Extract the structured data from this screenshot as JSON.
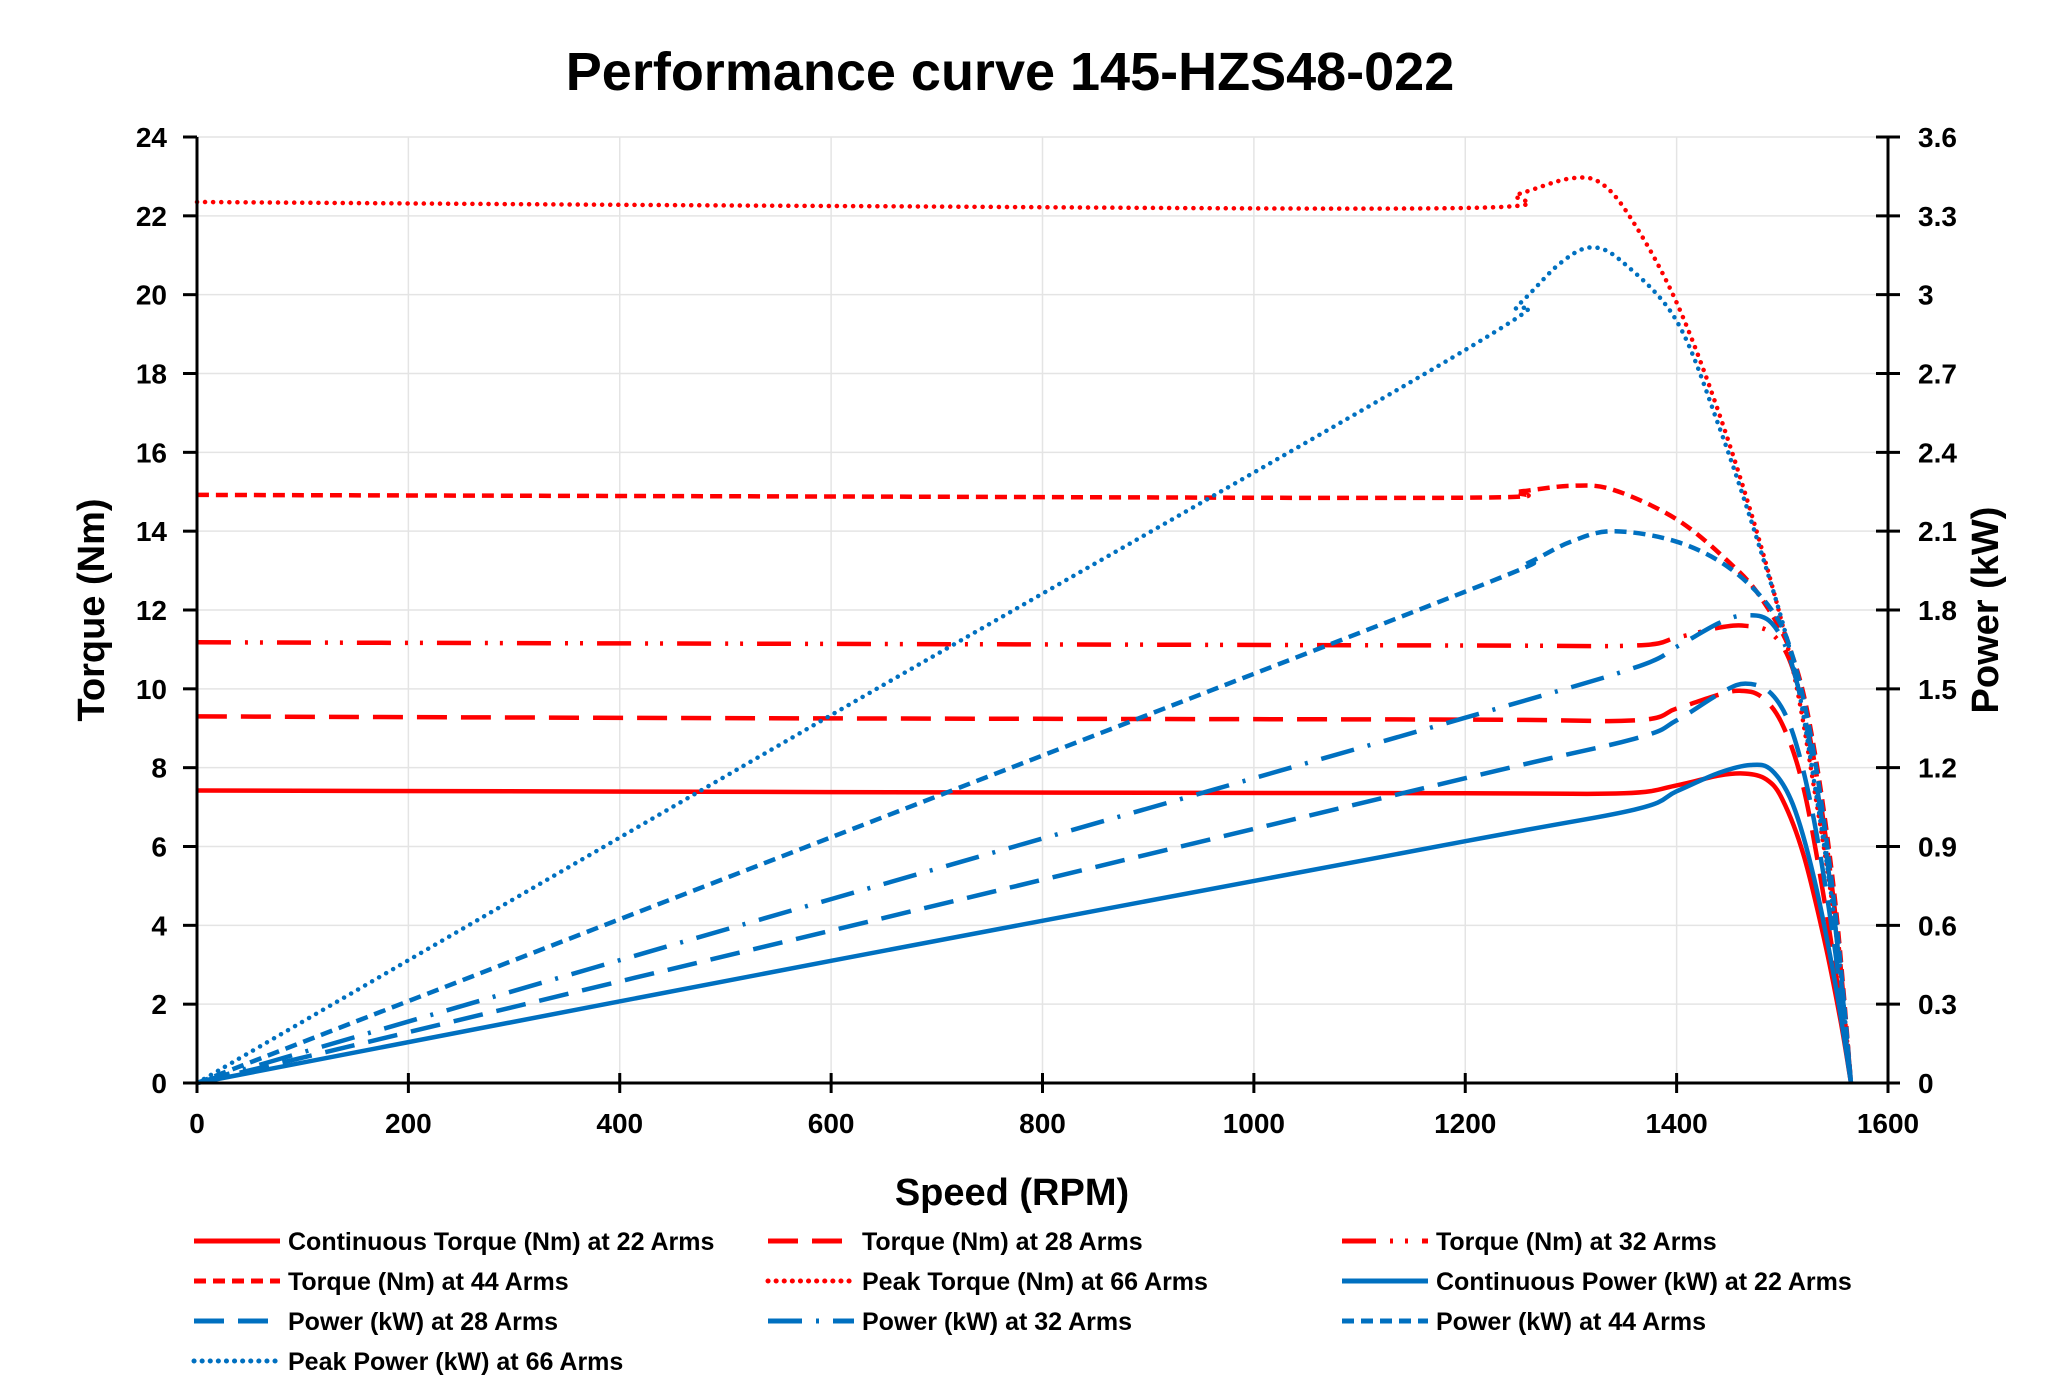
{
  "chart_data": {
    "type": "line",
    "title": "Performance curve 145-HZS48-022",
    "xlabel": "Speed (RPM)",
    "ylabel": "Torque (Nm)",
    "y2label": "Power (kW)",
    "xlim": [
      0,
      1600
    ],
    "ylim": [
      0,
      24
    ],
    "y2lim": [
      0,
      3.6
    ],
    "xticks": [
      "0",
      "200",
      "400",
      "600",
      "800",
      "1000",
      "1200",
      "1400",
      "1600"
    ],
    "yticks": [
      "0",
      "2",
      "4",
      "6",
      "8",
      "10",
      "12",
      "14",
      "16",
      "18",
      "20",
      "22",
      "24"
    ],
    "y2ticks": [
      "0",
      "0.3",
      "0.6",
      "0.9",
      "1.2",
      "1.5",
      "1.8",
      "2.1",
      "2.4",
      "2.7",
      "3",
      "3.3",
      "3.6"
    ],
    "grid": true,
    "legend_position": "bottom",
    "colors": {
      "torque": "#ff0000",
      "power": "#0070c0"
    },
    "series": [
      {
        "name": "Continuous Torque (Nm) at 22 Arms",
        "axis": "left",
        "color": "#ff0000",
        "dash": "solid",
        "points": [
          [
            0,
            7.42
          ],
          [
            600,
            7.38
          ],
          [
            1200,
            7.35
          ],
          [
            1350,
            7.35
          ],
          [
            1400,
            7.55
          ],
          [
            1440,
            7.8
          ],
          [
            1465,
            7.85
          ],
          [
            1485,
            7.7
          ],
          [
            1500,
            7.2
          ],
          [
            1520,
            5.8
          ],
          [
            1540,
            3.6
          ],
          [
            1555,
            1.6
          ],
          [
            1565,
            0
          ]
        ]
      },
      {
        "name": "Torque (Nm) at 28 Arms",
        "axis": "left",
        "color": "#ff0000",
        "dash": "long-dash",
        "points": [
          [
            0,
            9.3
          ],
          [
            600,
            9.25
          ],
          [
            1200,
            9.22
          ],
          [
            1360,
            9.2
          ],
          [
            1400,
            9.5
          ],
          [
            1440,
            9.85
          ],
          [
            1460,
            9.95
          ],
          [
            1480,
            9.8
          ],
          [
            1500,
            9.1
          ],
          [
            1520,
            7.5
          ],
          [
            1540,
            4.6
          ],
          [
            1555,
            2
          ],
          [
            1565,
            0
          ]
        ]
      },
      {
        "name": "Torque (Nm) at 32 Arms",
        "axis": "left",
        "color": "#ff0000",
        "dash": "dash-dot-dot",
        "points": [
          [
            0,
            11.18
          ],
          [
            600,
            11.14
          ],
          [
            1200,
            11.1
          ],
          [
            1360,
            11.1
          ],
          [
            1400,
            11.3
          ],
          [
            1440,
            11.55
          ],
          [
            1465,
            11.6
          ],
          [
            1490,
            11.4
          ],
          [
            1510,
            10.5
          ],
          [
            1530,
            8.2
          ],
          [
            1550,
            4.3
          ],
          [
            1565,
            0
          ]
        ]
      },
      {
        "name": "Torque (Nm) at 44 Arms",
        "axis": "left",
        "color": "#ff0000",
        "dash": "short-dash",
        "points": [
          [
            0,
            14.92
          ],
          [
            600,
            14.88
          ],
          [
            1200,
            14.85
          ],
          [
            1250,
            15.0
          ],
          [
            1300,
            15.15
          ],
          [
            1340,
            15.05
          ],
          [
            1400,
            14.3
          ],
          [
            1450,
            13.2
          ],
          [
            1480,
            12.3
          ],
          [
            1510,
            10.8
          ],
          [
            1530,
            8.5
          ],
          [
            1550,
            4.6
          ],
          [
            1565,
            0
          ]
        ]
      },
      {
        "name": "Peak Torque (Nm) at 66 Arms",
        "axis": "left",
        "color": "#ff0000",
        "dash": "dotted",
        "points": [
          [
            0,
            22.35
          ],
          [
            600,
            22.25
          ],
          [
            1200,
            22.2
          ],
          [
            1250,
            22.55
          ],
          [
            1300,
            22.95
          ],
          [
            1330,
            22.8
          ],
          [
            1360,
            21.8
          ],
          [
            1400,
            19.8
          ],
          [
            1440,
            17.0
          ],
          [
            1480,
            13.6
          ],
          [
            1510,
            10.5
          ],
          [
            1530,
            7.5
          ],
          [
            1550,
            4.0
          ],
          [
            1565,
            0
          ]
        ]
      },
      {
        "name": "Continuous Power (kW) at 22 Arms",
        "axis": "right",
        "color": "#0070c0",
        "dash": "solid",
        "points": [
          [
            0,
            0
          ],
          [
            600,
            0.465
          ],
          [
            1200,
            0.92
          ],
          [
            1360,
            1.04
          ],
          [
            1400,
            1.11
          ],
          [
            1440,
            1.18
          ],
          [
            1470,
            1.21
          ],
          [
            1490,
            1.19
          ],
          [
            1510,
            1.06
          ],
          [
            1530,
            0.78
          ],
          [
            1550,
            0.38
          ],
          [
            1565,
            0
          ]
        ]
      },
      {
        "name": "Power (kW) at 28 Arms",
        "axis": "right",
        "color": "#0070c0",
        "dash": "long-dash",
        "points": [
          [
            0,
            0
          ],
          [
            600,
            0.58
          ],
          [
            1200,
            1.16
          ],
          [
            1360,
            1.31
          ],
          [
            1400,
            1.38
          ],
          [
            1440,
            1.48
          ],
          [
            1465,
            1.52
          ],
          [
            1490,
            1.48
          ],
          [
            1510,
            1.33
          ],
          [
            1530,
            1.0
          ],
          [
            1550,
            0.5
          ],
          [
            1565,
            0
          ]
        ]
      },
      {
        "name": "Power (kW) at 32 Arms",
        "axis": "right",
        "color": "#0070c0",
        "dash": "dash-dot",
        "points": [
          [
            0,
            0
          ],
          [
            600,
            0.7
          ],
          [
            1200,
            1.39
          ],
          [
            1360,
            1.58
          ],
          [
            1400,
            1.66
          ],
          [
            1440,
            1.75
          ],
          [
            1465,
            1.78
          ],
          [
            1490,
            1.75
          ],
          [
            1510,
            1.58
          ],
          [
            1530,
            1.2
          ],
          [
            1550,
            0.6
          ],
          [
            1565,
            0
          ]
        ]
      },
      {
        "name": "Power (kW) at 44 Arms",
        "axis": "right",
        "color": "#0070c0",
        "dash": "short-dash",
        "points": [
          [
            0,
            0
          ],
          [
            600,
            0.935
          ],
          [
            1200,
            1.87
          ],
          [
            1260,
            1.98
          ],
          [
            1300,
            2.06
          ],
          [
            1340,
            2.1
          ],
          [
            1400,
            2.06
          ],
          [
            1450,
            1.96
          ],
          [
            1490,
            1.8
          ],
          [
            1510,
            1.62
          ],
          [
            1530,
            1.25
          ],
          [
            1550,
            0.65
          ],
          [
            1565,
            0
          ]
        ]
      },
      {
        "name": "Peak Power (kW) at 66 Arms",
        "axis": "right",
        "color": "#0070c0",
        "dash": "dotted",
        "points": [
          [
            0,
            0
          ],
          [
            600,
            1.4
          ],
          [
            1200,
            2.79
          ],
          [
            1250,
            2.96
          ],
          [
            1290,
            3.12
          ],
          [
            1320,
            3.18
          ],
          [
            1350,
            3.12
          ],
          [
            1400,
            2.9
          ],
          [
            1440,
            2.5
          ],
          [
            1480,
            2.02
          ],
          [
            1510,
            1.6
          ],
          [
            1530,
            1.15
          ],
          [
            1550,
            0.6
          ],
          [
            1565,
            0
          ]
        ]
      }
    ]
  }
}
